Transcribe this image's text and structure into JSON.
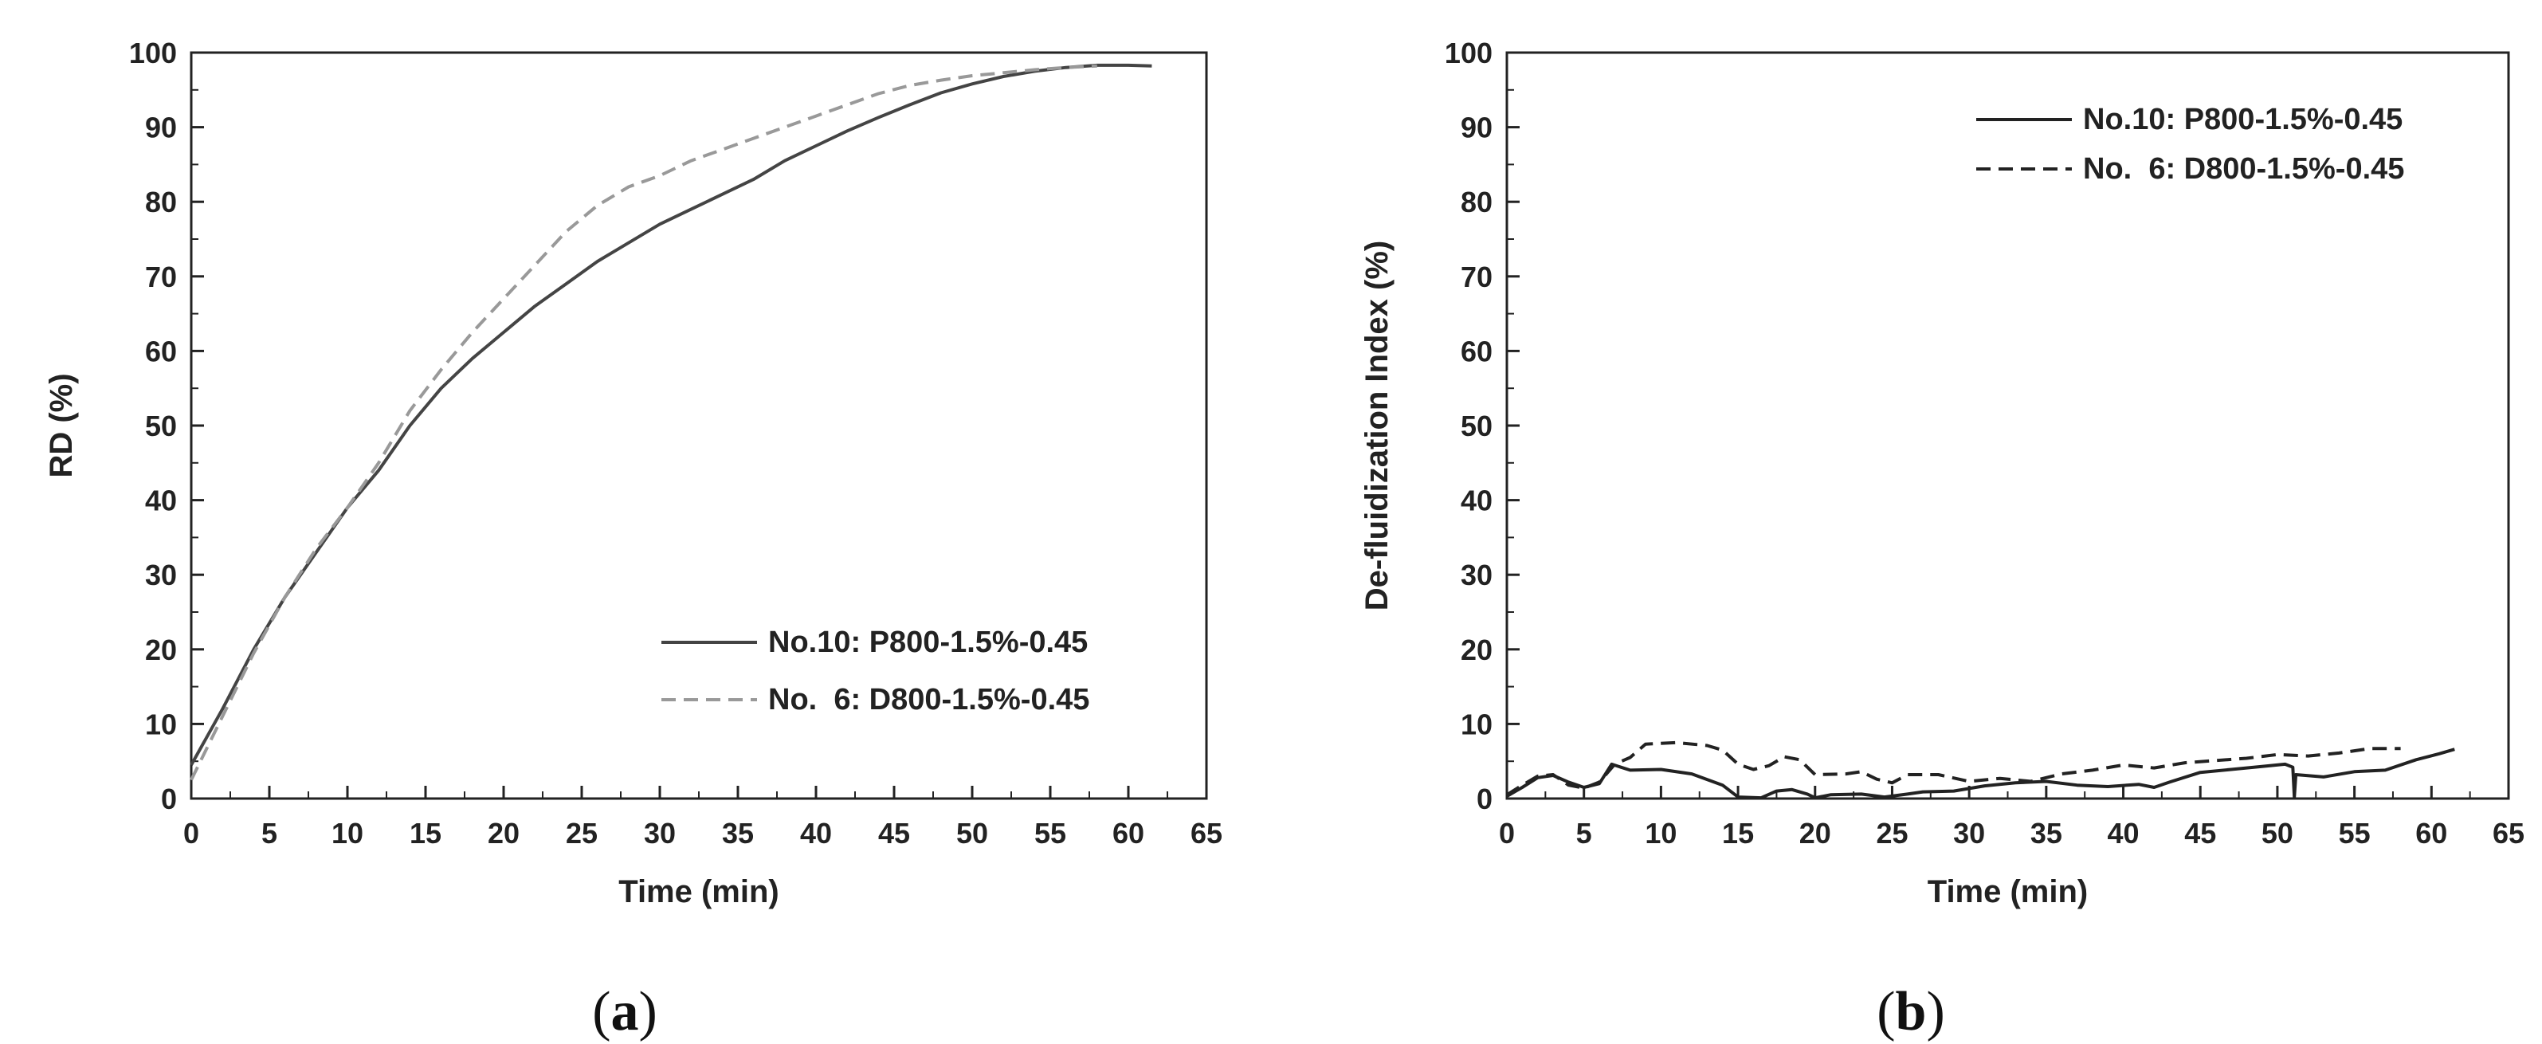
{
  "chart_data": [
    {
      "type": "line",
      "panel_label": "a",
      "xlabel": "Time (min)",
      "ylabel": "RD (%)",
      "xlim": [
        0,
        65
      ],
      "ylim": [
        0,
        100
      ],
      "xticks": [
        0,
        5,
        10,
        15,
        20,
        25,
        30,
        35,
        40,
        45,
        50,
        55,
        60,
        65
      ],
      "yticks": [
        0,
        10,
        20,
        30,
        40,
        50,
        60,
        70,
        80,
        90,
        100
      ],
      "grid": false,
      "legend_position": "bottom-right",
      "series": [
        {
          "name": "No.10: P800-1.5%-0.45",
          "color": "#444444",
          "style": "solid",
          "points": [
            [
              0,
              4.5
            ],
            [
              2,
              12
            ],
            [
              4,
              20
            ],
            [
              6,
              27
            ],
            [
              8,
              33
            ],
            [
              10,
              39
            ],
            [
              12,
              44
            ],
            [
              14,
              50
            ],
            [
              16,
              55
            ],
            [
              18,
              59
            ],
            [
              20,
              62.5
            ],
            [
              22,
              66
            ],
            [
              24,
              69
            ],
            [
              26,
              72
            ],
            [
              28,
              74.5
            ],
            [
              30,
              77
            ],
            [
              32,
              79
            ],
            [
              34,
              81
            ],
            [
              36,
              83
            ],
            [
              38,
              85.5
            ],
            [
              40,
              87.5
            ],
            [
              42,
              89.5
            ],
            [
              44,
              91.3
            ],
            [
              46,
              93
            ],
            [
              48,
              94.6
            ],
            [
              50,
              95.8
            ],
            [
              52,
              96.8
            ],
            [
              54,
              97.5
            ],
            [
              56,
              98
            ],
            [
              58,
              98.3
            ],
            [
              60,
              98.3
            ],
            [
              61.5,
              98.2
            ]
          ]
        },
        {
          "name": "No.  6: D800-1.5%-0.45",
          "color": "#999999",
          "style": "dashed",
          "points": [
            [
              0,
              2.5
            ],
            [
              2,
              11
            ],
            [
              4,
              19.5
            ],
            [
              6,
              27
            ],
            [
              8,
              33.5
            ],
            [
              10,
              39
            ],
            [
              12,
              45
            ],
            [
              14,
              52
            ],
            [
              16,
              57.5
            ],
            [
              18,
              62.5
            ],
            [
              20,
              67
            ],
            [
              22,
              71.5
            ],
            [
              24,
              76
            ],
            [
              26,
              79.5
            ],
            [
              28,
              82
            ],
            [
              30,
              83.5
            ],
            [
              32,
              85.5
            ],
            [
              34,
              87
            ],
            [
              36,
              88.5
            ],
            [
              38,
              90
            ],
            [
              40,
              91.5
            ],
            [
              42,
              93
            ],
            [
              44,
              94.5
            ],
            [
              46,
              95.6
            ],
            [
              48,
              96.3
            ],
            [
              50,
              96.9
            ],
            [
              52,
              97.3
            ],
            [
              54,
              97.7
            ],
            [
              56,
              98
            ],
            [
              58,
              98.2
            ]
          ]
        }
      ]
    },
    {
      "type": "line",
      "panel_label": "b",
      "xlabel": "Time (min)",
      "ylabel": "De-fluidization Index (%)",
      "xlim": [
        0,
        65
      ],
      "ylim": [
        0,
        100
      ],
      "xticks": [
        0,
        5,
        10,
        15,
        20,
        25,
        30,
        35,
        40,
        45,
        50,
        55,
        60,
        65
      ],
      "yticks": [
        0,
        10,
        20,
        30,
        40,
        50,
        60,
        70,
        80,
        90,
        100
      ],
      "grid": false,
      "legend_position": "top-right",
      "series": [
        {
          "name": "No.10: P800-1.5%-0.45",
          "color": "#222222",
          "style": "solid",
          "points": [
            [
              0,
              0.3
            ],
            [
              1,
              1.5
            ],
            [
              2,
              2.8
            ],
            [
              3,
              3.1
            ],
            [
              4,
              2.2
            ],
            [
              5,
              1.5
            ],
            [
              6,
              2
            ],
            [
              6.8,
              4.6
            ],
            [
              8,
              3.8
            ],
            [
              10,
              3.9
            ],
            [
              12,
              3.3
            ],
            [
              14,
              1.8
            ],
            [
              15,
              0.2
            ],
            [
              16.5,
              0.1
            ],
            [
              17.5,
              1
            ],
            [
              18.5,
              1.2
            ],
            [
              19.5,
              0.6
            ],
            [
              20,
              0.1
            ],
            [
              21,
              0.5
            ],
            [
              23,
              0.6
            ],
            [
              24.5,
              0.2
            ],
            [
              26,
              0.6
            ],
            [
              27,
              0.9
            ],
            [
              29,
              1
            ],
            [
              31,
              1.7
            ],
            [
              33,
              2.1
            ],
            [
              35,
              2.3
            ],
            [
              37,
              1.8
            ],
            [
              39,
              1.6
            ],
            [
              41,
              1.9
            ],
            [
              42,
              1.5
            ],
            [
              43,
              2.2
            ],
            [
              45,
              3.5
            ],
            [
              47,
              3.9
            ],
            [
              49,
              4.3
            ],
            [
              50.5,
              4.6
            ],
            [
              51,
              4.2
            ],
            [
              51.1,
              0.2
            ],
            [
              51.2,
              3.2
            ],
            [
              53,
              2.9
            ],
            [
              55,
              3.6
            ],
            [
              57,
              3.8
            ],
            [
              59,
              5.2
            ],
            [
              60.5,
              6
            ],
            [
              61.5,
              6.6
            ]
          ]
        },
        {
          "name": "No.  6: D800-1.5%-0.45",
          "color": "#222222",
          "style": "dashed",
          "points": [
            [
              0,
              0.5
            ],
            [
              1,
              1.8
            ],
            [
              2,
              3
            ],
            [
              3,
              3.2
            ],
            [
              4,
              1.8
            ],
            [
              5,
              1.4
            ],
            [
              6,
              2.2
            ],
            [
              7,
              4.6
            ],
            [
              8,
              5.5
            ],
            [
              9,
              7.3
            ],
            [
              11,
              7.5
            ],
            [
              13,
              7.1
            ],
            [
              14,
              6.5
            ],
            [
              15,
              4.6
            ],
            [
              16,
              3.9
            ],
            [
              17,
              4.4
            ],
            [
              18,
              5.6
            ],
            [
              19,
              5.2
            ],
            [
              20,
              3.2
            ],
            [
              22,
              3.3
            ],
            [
              23,
              3.6
            ],
            [
              24,
              2.6
            ],
            [
              25,
              2.1
            ],
            [
              26,
              3.2
            ],
            [
              28,
              3.2
            ],
            [
              30,
              2.3
            ],
            [
              32,
              2.7
            ],
            [
              34,
              2.3
            ],
            [
              36,
              3.3
            ],
            [
              38,
              3.8
            ],
            [
              40,
              4.5
            ],
            [
              42,
              4.1
            ],
            [
              44,
              4.8
            ],
            [
              46,
              5.1
            ],
            [
              48,
              5.4
            ],
            [
              50,
              5.9
            ],
            [
              52,
              5.7
            ],
            [
              54,
              6.1
            ],
            [
              56,
              6.7
            ],
            [
              58,
              6.7
            ]
          ]
        }
      ]
    }
  ],
  "captions": [
    {
      "open": "(",
      "letter": "a",
      "close": ")"
    },
    {
      "open": "(",
      "letter": "b",
      "close": ")"
    }
  ]
}
